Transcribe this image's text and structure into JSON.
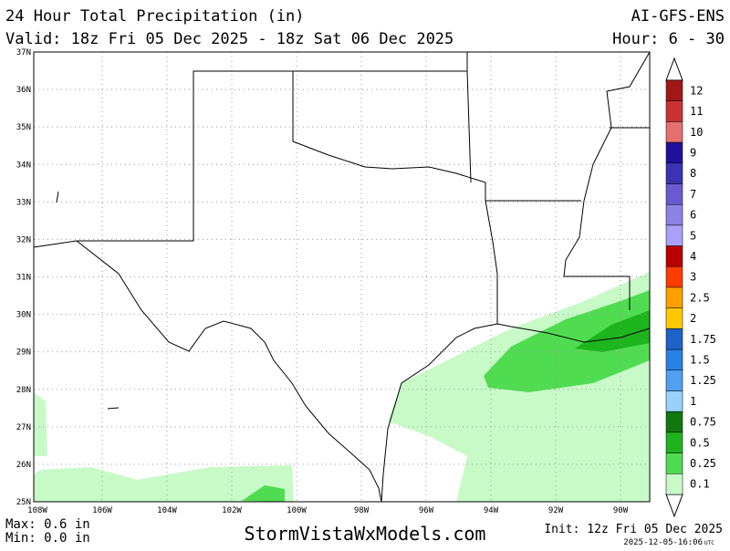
{
  "header": {
    "title": "24 Hour Total Precipitation (in)",
    "valid": "Valid: 18z Fri 05 Dec 2025 - 18z Sat 06 Dec 2025",
    "model": "AI-GFS-ENS",
    "hour": "Hour: 6 - 30"
  },
  "map": {
    "latitudes": [
      "37N",
      "36N",
      "35N",
      "34N",
      "33N",
      "32N",
      "31N",
      "30N",
      "29N",
      "28N",
      "27N",
      "26N",
      "25N"
    ],
    "longitudes": [
      "108W",
      "106W",
      "104W",
      "102W",
      "100W",
      "98W",
      "96W",
      "94W",
      "92W",
      "90W"
    ]
  },
  "colorbar": [
    {
      "label": "12",
      "color": "#a01818"
    },
    {
      "label": "11",
      "color": "#c83232"
    },
    {
      "label": "10",
      "color": "#e47070"
    },
    {
      "label": "9",
      "color": "#20109a"
    },
    {
      "label": "8",
      "color": "#3c32b4"
    },
    {
      "label": "7",
      "color": "#6a5ad2"
    },
    {
      "label": "6",
      "color": "#8c82e6"
    },
    {
      "label": "5",
      "color": "#aaa0f8"
    },
    {
      "label": "4",
      "color": "#b80000"
    },
    {
      "label": "3",
      "color": "#ff3c00"
    },
    {
      "label": "2.5",
      "color": "#ffa000"
    },
    {
      "label": "2",
      "color": "#ffc800"
    },
    {
      "label": "1.75",
      "color": "#1e64c8"
    },
    {
      "label": "1.5",
      "color": "#2882e6"
    },
    {
      "label": "1.25",
      "color": "#50a0f0"
    },
    {
      "label": "1",
      "color": "#96d2fa"
    },
    {
      "label": "0.75",
      "color": "#0f780f"
    },
    {
      "label": "0.5",
      "color": "#1eb41e"
    },
    {
      "label": "0.25",
      "color": "#50dc50"
    },
    {
      "label": "0.1",
      "color": "#c8fac8"
    }
  ],
  "footer": {
    "max": "Max: 0.6 in",
    "min": "Min: 0.0 in",
    "site": "StormVistaWxModels.com",
    "init": "Init: 12z Fri 05 Dec 2025",
    "stamp": "2025-12-05-16:06",
    "utc": "UTC"
  }
}
